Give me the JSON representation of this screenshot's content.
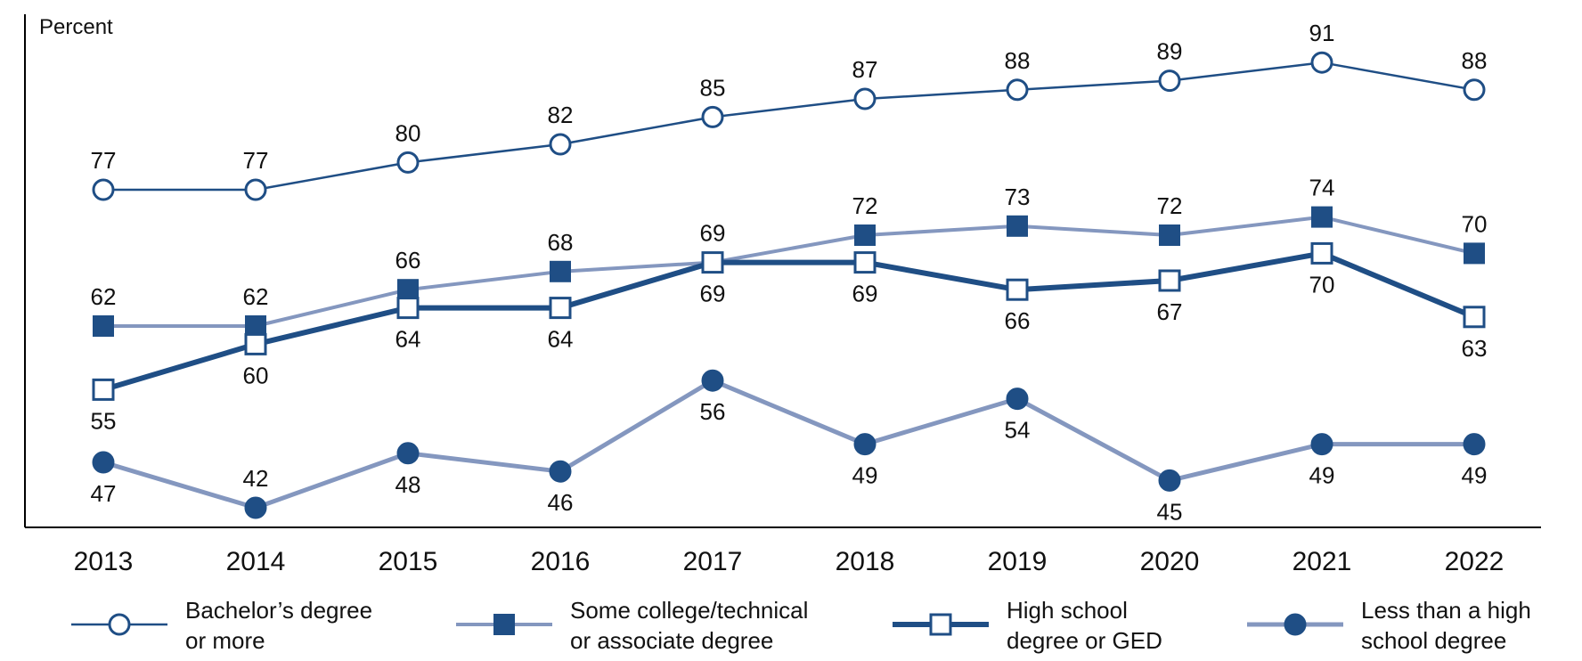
{
  "chart_data": {
    "type": "line",
    "ylabel": "Percent",
    "categories": [
      "2013",
      "2014",
      "2015",
      "2016",
      "2017",
      "2018",
      "2019",
      "2020",
      "2021",
      "2022"
    ],
    "grid": false,
    "legend_position": "bottom",
    "series": [
      {
        "name": "Bachelor’s degree or more",
        "legend_lines": [
          "Bachelor’s degree",
          "or more"
        ],
        "values": [
          77,
          77,
          80,
          82,
          85,
          87,
          88,
          89,
          91,
          88
        ],
        "label_pos": [
          "above",
          "above",
          "above",
          "above",
          "above",
          "above",
          "above",
          "above",
          "above",
          "above"
        ],
        "color": "#1f4e85",
        "line_color": "#1f4e85",
        "line_width": 2.5,
        "marker": "circle-open"
      },
      {
        "name": "Some college/technical or associate degree",
        "legend_lines": [
          "Some college/technical",
          "or associate degree"
        ],
        "values": [
          62,
          62,
          66,
          68,
          69,
          72,
          73,
          72,
          74,
          70
        ],
        "label_pos": [
          "above",
          "above",
          "above",
          "above",
          "above",
          "above",
          "above",
          "above",
          "above",
          "above"
        ],
        "color": "#1f4e85",
        "line_color": "#8497bf",
        "line_width": 4,
        "marker": "square-filled"
      },
      {
        "name": "High school degree or GED",
        "legend_lines": [
          "High school",
          "degree or GED"
        ],
        "values": [
          55,
          60,
          64,
          64,
          69,
          69,
          66,
          67,
          70,
          63
        ],
        "label_pos": [
          "below",
          "below",
          "below",
          "below",
          "below",
          "below",
          "below",
          "below",
          "below",
          "below"
        ],
        "color": "#1f4e85",
        "line_color": "#1f4e85",
        "line_width": 6,
        "marker": "square-open"
      },
      {
        "name": "Less than a high school degree",
        "legend_lines": [
          "Less than a high",
          "school degree"
        ],
        "values": [
          47,
          42,
          48,
          46,
          56,
          49,
          54,
          45,
          49,
          49
        ],
        "label_pos": [
          "below",
          "above",
          "below",
          "below",
          "below",
          "below",
          "below",
          "below",
          "below",
          "below"
        ],
        "color": "#1f4e85",
        "line_color": "#8497bf",
        "line_width": 5,
        "marker": "circle-filled"
      }
    ]
  }
}
